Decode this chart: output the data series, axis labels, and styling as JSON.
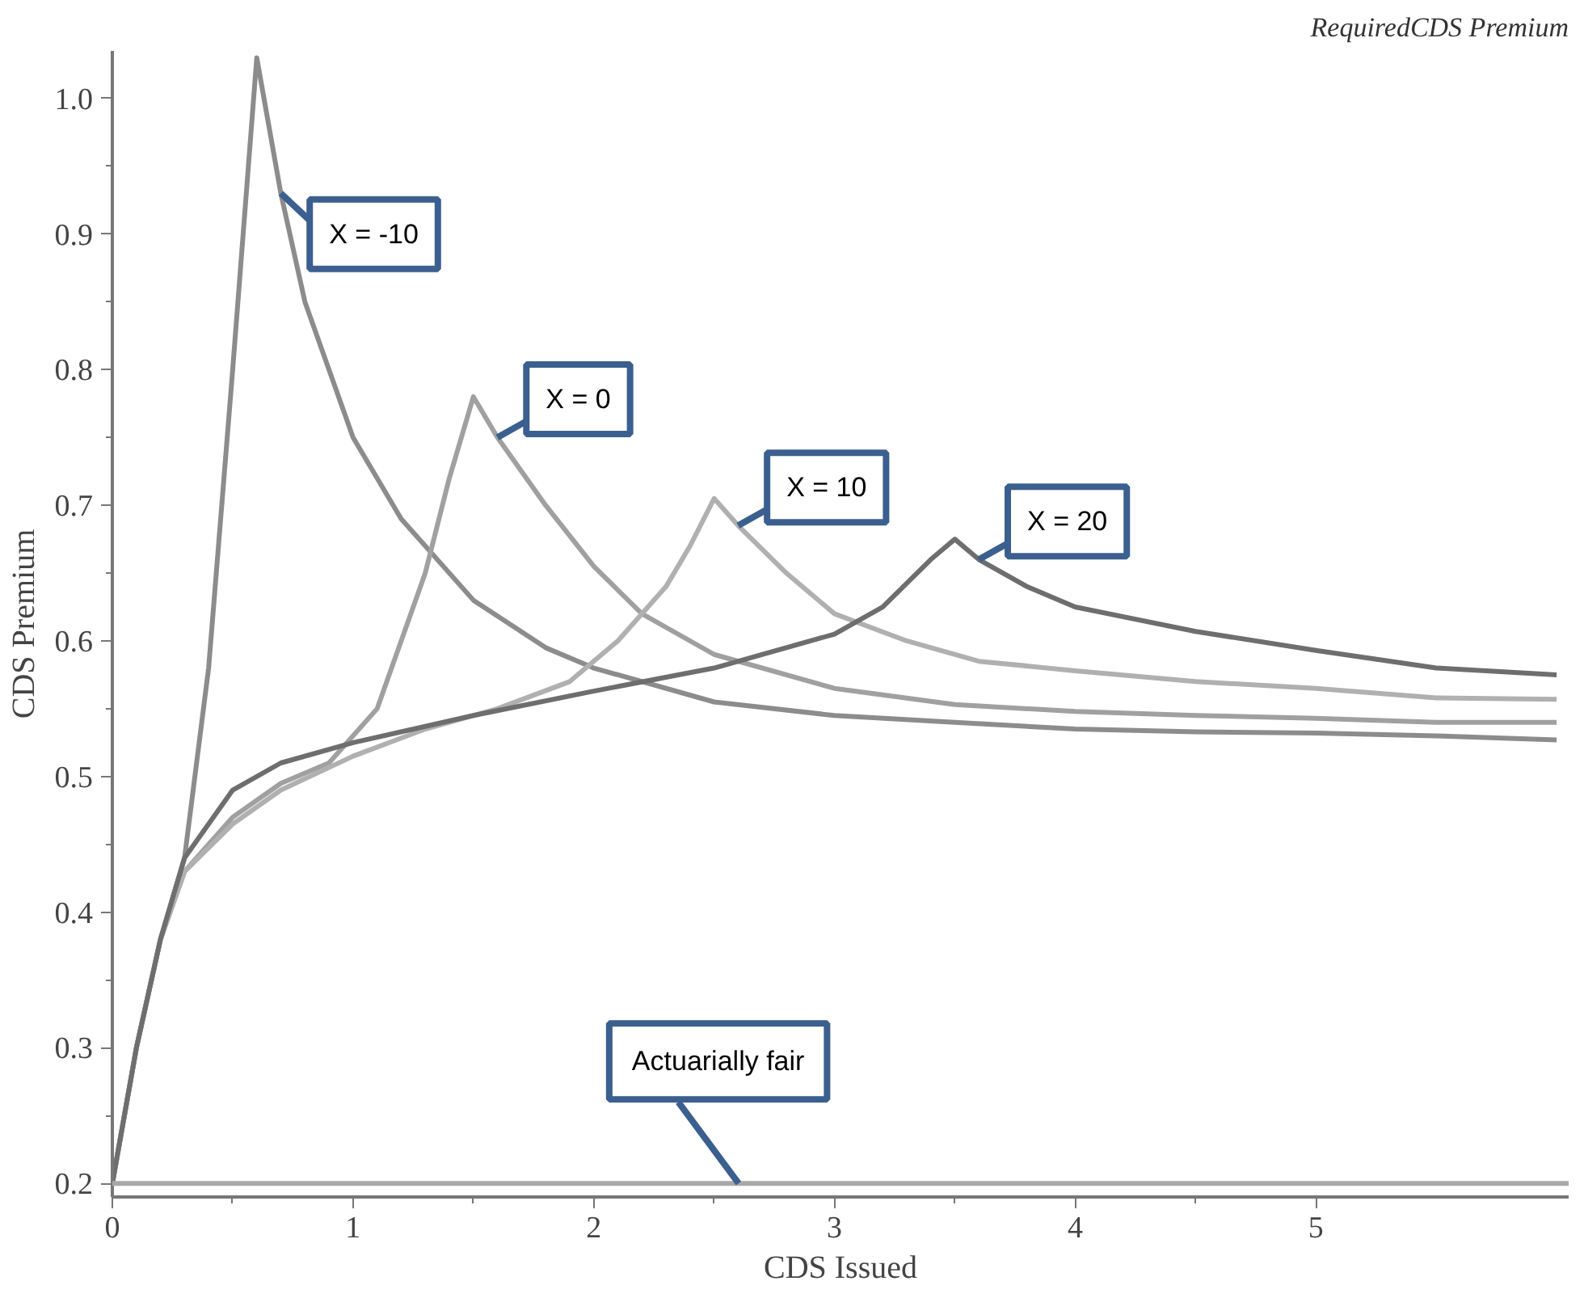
{
  "chart_data": {
    "type": "line",
    "title": "RequiredCDS Premium",
    "xlabel": "CDS Issued",
    "ylabel": "CDS Premium",
    "xlim": [
      0,
      6.05
    ],
    "ylim": [
      0.19,
      1.035
    ],
    "xticks": [
      0,
      1,
      2,
      3,
      4,
      5
    ],
    "yticks": [
      0.2,
      0.3,
      0.4,
      0.5,
      0.6,
      0.7,
      0.8,
      0.9,
      {
        "value": 1.0,
        "label": "1.0"
      }
    ],
    "grid": false,
    "legend": false,
    "line_style": "solid",
    "marker": "none",
    "series": [
      {
        "name": "X = -10",
        "color": "#8c8c8c",
        "x": [
          0,
          0.1,
          0.2,
          0.3,
          0.4,
          0.5,
          0.6,
          0.7,
          0.8,
          1.0,
          1.2,
          1.5,
          1.8,
          2.0,
          2.5,
          3.0,
          3.5,
          4.0,
          4.5,
          5.0,
          5.5,
          6.0
        ],
        "values": [
          0.2,
          0.3,
          0.38,
          0.44,
          0.58,
          0.8,
          1.03,
          0.93,
          0.85,
          0.75,
          0.69,
          0.63,
          0.595,
          0.58,
          0.555,
          0.545,
          0.54,
          0.535,
          0.533,
          0.532,
          0.53,
          0.527
        ]
      },
      {
        "name": "X = 0",
        "color": "#a0a0a0",
        "x": [
          0,
          0.1,
          0.2,
          0.3,
          0.5,
          0.7,
          0.9,
          1.1,
          1.2,
          1.3,
          1.4,
          1.5,
          1.6,
          1.8,
          2.0,
          2.2,
          2.5,
          3.0,
          3.5,
          4.0,
          4.5,
          5.0,
          5.5,
          6.0
        ],
        "values": [
          0.2,
          0.3,
          0.38,
          0.43,
          0.47,
          0.495,
          0.51,
          0.55,
          0.6,
          0.65,
          0.72,
          0.78,
          0.75,
          0.7,
          0.655,
          0.62,
          0.59,
          0.565,
          0.553,
          0.548,
          0.545,
          0.543,
          0.54,
          0.54
        ]
      },
      {
        "name": "X = 10",
        "color": "#b0b0b0",
        "x": [
          0,
          0.1,
          0.2,
          0.3,
          0.5,
          0.7,
          1.0,
          1.3,
          1.6,
          1.9,
          2.1,
          2.3,
          2.4,
          2.5,
          2.6,
          2.8,
          3.0,
          3.3,
          3.6,
          4.0,
          4.5,
          5.0,
          5.5,
          6.0
        ],
        "values": [
          0.2,
          0.3,
          0.38,
          0.43,
          0.465,
          0.49,
          0.515,
          0.535,
          0.55,
          0.57,
          0.6,
          0.64,
          0.67,
          0.705,
          0.685,
          0.65,
          0.62,
          0.6,
          0.585,
          0.578,
          0.57,
          0.565,
          0.558,
          0.557
        ]
      },
      {
        "name": "X = 20",
        "color": "#6e6e6e",
        "x": [
          0,
          0.1,
          0.2,
          0.3,
          0.5,
          0.7,
          1.0,
          1.5,
          2.0,
          2.5,
          3.0,
          3.2,
          3.4,
          3.5,
          3.6,
          3.8,
          4.0,
          4.5,
          5.0,
          5.5,
          6.0
        ],
        "values": [
          0.2,
          0.3,
          0.38,
          0.44,
          0.49,
          0.51,
          0.525,
          0.545,
          0.563,
          0.58,
          0.605,
          0.625,
          0.66,
          0.675,
          0.66,
          0.64,
          0.625,
          0.607,
          0.593,
          0.58,
          0.575
        ]
      }
    ],
    "ref_lines": [
      {
        "axis": "y",
        "value": 0.2,
        "label": "Actuarially fair",
        "color": "#a8a8a8"
      }
    ]
  }
}
